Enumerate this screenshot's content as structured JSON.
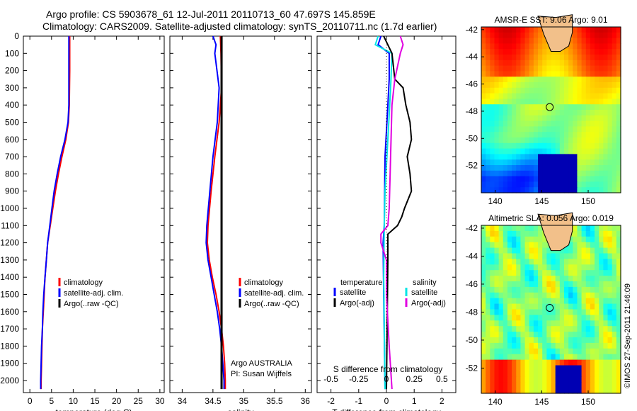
{
  "header": {
    "line1": "Argo profile: CS 5903678_61 12-Jul-2011 20110713_60 47.697S 145.859E",
    "line2": "Climatology: CARS2009. Satellite-adjusted climatology: synTS_20110711.nc (1.7d earlier)"
  },
  "credit": "©IMOS 27-Sep-2011 21:46:09",
  "colors": {
    "climatology": "#ff0000",
    "satellite": "#0000ff",
    "argo": "#000000",
    "sat_salinity": "#00e5e5",
    "argo_salinity": "#e000e0"
  },
  "chart_data": [
    {
      "type": "line",
      "name": "temperature-panel",
      "xlabel": "temperature (deg C)",
      "ylabel": "",
      "xlim": [
        -1.5,
        31
      ],
      "ylim": [
        2070,
        0
      ],
      "xticks": [
        0,
        5,
        10,
        15,
        20,
        25,
        30
      ],
      "yticks": [
        0,
        100,
        200,
        300,
        400,
        500,
        600,
        700,
        800,
        900,
        1000,
        1100,
        1200,
        1300,
        1400,
        1500,
        1600,
        1700,
        1800,
        1900,
        2000
      ],
      "legend": [
        "climatology",
        "satellite-adj. clim.",
        "Argo(..raw -QC)"
      ],
      "series": [
        {
          "name": "climatology",
          "color_key": "climatology",
          "points": [
            [
              9.2,
              0
            ],
            [
              9.2,
              200
            ],
            [
              9.1,
              400
            ],
            [
              8.9,
              500
            ],
            [
              8.3,
              600
            ],
            [
              7.4,
              700
            ],
            [
              6.6,
              800
            ],
            [
              5.9,
              900
            ],
            [
              5.3,
              1000
            ],
            [
              4.7,
              1100
            ],
            [
              4.1,
              1200
            ],
            [
              3.8,
              1300
            ],
            [
              3.5,
              1400
            ],
            [
              3.3,
              1500
            ],
            [
              3.1,
              1600
            ],
            [
              2.9,
              1700
            ],
            [
              2.8,
              1800
            ],
            [
              2.7,
              1900
            ],
            [
              2.6,
              2000
            ],
            [
              2.6,
              2050
            ]
          ]
        },
        {
          "name": "satellite-adj. clim.",
          "color_key": "satellite",
          "points": [
            [
              9.0,
              0
            ],
            [
              9.0,
              200
            ],
            [
              9.0,
              400
            ],
            [
              8.8,
              500
            ],
            [
              8.1,
              600
            ],
            [
              7.1,
              700
            ],
            [
              6.3,
              800
            ],
            [
              5.6,
              900
            ],
            [
              5.1,
              1000
            ],
            [
              4.6,
              1100
            ],
            [
              4.1,
              1200
            ],
            [
              3.8,
              1300
            ],
            [
              3.5,
              1400
            ],
            [
              3.2,
              1500
            ],
            [
              3.0,
              1600
            ],
            [
              2.9,
              1700
            ],
            [
              2.7,
              1800
            ],
            [
              2.6,
              1900
            ],
            [
              2.5,
              2000
            ],
            [
              2.5,
              2050
            ]
          ]
        }
      ]
    },
    {
      "type": "line",
      "name": "salinity-panel",
      "xlabel": "salinity",
      "ylabel": "",
      "xlim": [
        33.8,
        36.1
      ],
      "ylim": [
        2070,
        0
      ],
      "xticks": [
        34,
        34.5,
        35,
        35.5,
        36
      ],
      "legend": [
        "climatology",
        "satellite-adj. clim.",
        "Argo(..raw -QC)"
      ],
      "annotation": [
        "Argo AUSTRALIA",
        "PI: Susan Wijffels"
      ],
      "series": [
        {
          "name": "climatology",
          "color_key": "climatology",
          "points": [
            [
              34.62,
              0
            ],
            [
              34.63,
              100
            ],
            [
              34.64,
              300
            ],
            [
              34.6,
              500
            ],
            [
              34.53,
              700
            ],
            [
              34.47,
              900
            ],
            [
              34.42,
              1100
            ],
            [
              34.41,
              1200
            ],
            [
              34.44,
              1300
            ],
            [
              34.49,
              1400
            ],
            [
              34.55,
              1500
            ],
            [
              34.6,
              1600
            ],
            [
              34.64,
              1700
            ],
            [
              34.67,
              1800
            ],
            [
              34.69,
              1900
            ],
            [
              34.7,
              2000
            ],
            [
              34.7,
              2050
            ]
          ]
        },
        {
          "name": "satellite-adj. clim.",
          "color_key": "satellite",
          "points": [
            [
              34.5,
              0
            ],
            [
              34.55,
              50
            ],
            [
              34.53,
              100
            ],
            [
              34.6,
              300
            ],
            [
              34.57,
              500
            ],
            [
              34.5,
              700
            ],
            [
              34.45,
              900
            ],
            [
              34.4,
              1100
            ],
            [
              34.39,
              1200
            ],
            [
              34.42,
              1300
            ],
            [
              34.47,
              1400
            ],
            [
              34.52,
              1500
            ],
            [
              34.57,
              1600
            ],
            [
              34.61,
              1700
            ],
            [
              34.64,
              1800
            ],
            [
              34.66,
              1900
            ],
            [
              34.68,
              2000
            ],
            [
              34.68,
              2050
            ]
          ]
        }
      ],
      "argo_line": {
        "x": 34.64,
        "y_from": 0,
        "y_to": 2050
      }
    },
    {
      "type": "line",
      "name": "difference-panel",
      "xlabel": "T difference from climatology",
      "top_label": "S difference from climatology",
      "xlim": [
        -2.5,
        2.5
      ],
      "ylim": [
        2070,
        0
      ],
      "xticks": [
        -2,
        -1,
        0,
        1,
        2
      ],
      "top_ticks": [
        "-0.5",
        "-0.25",
        "0",
        "0.25",
        "0.5"
      ],
      "legend_titles": [
        "temperature",
        "salinity"
      ],
      "legend_left": [
        "satellite",
        "Argo(-adj)"
      ],
      "legend_right": [
        "satellite",
        "Argo(-adj)"
      ],
      "series": [
        {
          "name": "T satellite",
          "color_key": "satellite",
          "points": [
            [
              -0.2,
              0
            ],
            [
              -0.3,
              50
            ],
            [
              0.1,
              100
            ],
            [
              0.1,
              250
            ],
            [
              0.05,
              400
            ],
            [
              -0.05,
              700
            ],
            [
              -0.08,
              1100
            ],
            [
              -0.12,
              1200
            ],
            [
              -0.1,
              1500
            ],
            [
              -0.05,
              2050
            ]
          ]
        },
        {
          "name": "S satellite",
          "color_key": "sat_salinity",
          "points": [
            [
              -0.3,
              0
            ],
            [
              -0.4,
              50
            ],
            [
              0.2,
              100
            ],
            [
              0.15,
              300
            ],
            [
              0.05,
              600
            ],
            [
              -0.05,
              900
            ],
            [
              -0.08,
              1100
            ],
            [
              -0.1,
              1400
            ],
            [
              -0.05,
              2050
            ]
          ]
        },
        {
          "name": "T Argo",
          "color_key": "argo",
          "points": [
            [
              -0.1,
              0
            ],
            [
              0.2,
              100
            ],
            [
              0.3,
              250
            ],
            [
              0.6,
              300
            ],
            [
              0.7,
              400
            ],
            [
              0.85,
              500
            ],
            [
              0.9,
              600
            ],
            [
              0.75,
              700
            ],
            [
              0.85,
              800
            ],
            [
              0.9,
              900
            ],
            [
              0.65,
              1000
            ],
            [
              0.55,
              1050
            ],
            [
              0.4,
              1100
            ],
            [
              0.05,
              1150
            ],
            [
              0.05,
              1300
            ],
            [
              0.0,
              2050
            ]
          ]
        },
        {
          "name": "S Argo",
          "color_key": "argo_salinity",
          "points": [
            [
              0.5,
              0
            ],
            [
              0.6,
              50
            ],
            [
              0.5,
              100
            ],
            [
              0.3,
              250
            ],
            [
              0.2,
              400
            ],
            [
              0.1,
              1000
            ],
            [
              0.05,
              1100
            ],
            [
              -0.2,
              1150
            ],
            [
              -0.2,
              1200
            ],
            [
              0.0,
              1300
            ],
            [
              0.0,
              1500
            ],
            [
              0.1,
              1800
            ],
            [
              0.2,
              2050
            ]
          ]
        }
      ]
    },
    {
      "type": "heatmap",
      "name": "sst-map",
      "title": "AMSR-E SST: 9.06 Argo: 9.01",
      "xlim": [
        138.5,
        153.5
      ],
      "ylim": [
        -54,
        -41.8
      ],
      "xticks": [
        140,
        145,
        150
      ],
      "yticks": [
        -42,
        -44,
        -46,
        -48,
        -50,
        -52
      ],
      "marker": {
        "lon": 145.859,
        "lat": -47.697
      }
    },
    {
      "type": "heatmap",
      "name": "sla-map",
      "title": "Altimetric SLA: 0.056 Argo: 0.019",
      "xlim": [
        138.5,
        153.5
      ],
      "ylim": [
        -53.8,
        -41.8
      ],
      "xticks": [
        140,
        145,
        150
      ],
      "yticks": [
        -42,
        -44,
        -46,
        -48,
        -50,
        -52
      ],
      "marker": {
        "lon": 145.859,
        "lat": -47.697
      }
    }
  ]
}
